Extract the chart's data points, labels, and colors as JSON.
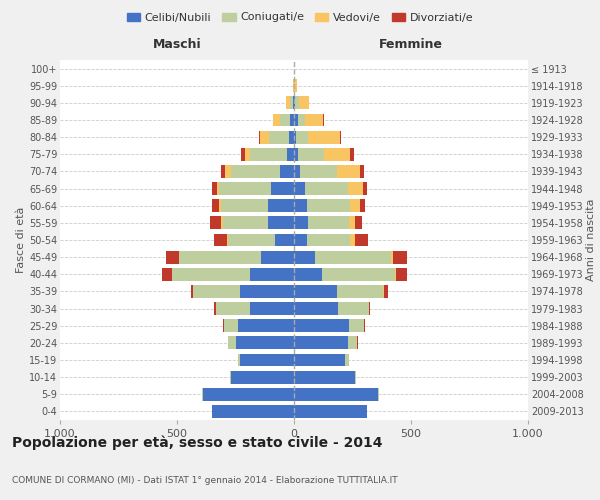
{
  "age_groups": [
    "0-4",
    "5-9",
    "10-14",
    "15-19",
    "20-24",
    "25-29",
    "30-34",
    "35-39",
    "40-44",
    "45-49",
    "50-54",
    "55-59",
    "60-64",
    "65-69",
    "70-74",
    "75-79",
    "80-84",
    "85-89",
    "90-94",
    "95-99",
    "100+"
  ],
  "birth_years": [
    "2009-2013",
    "2004-2008",
    "1999-2003",
    "1994-1998",
    "1989-1993",
    "1984-1988",
    "1979-1983",
    "1974-1978",
    "1969-1973",
    "1964-1968",
    "1959-1963",
    "1954-1958",
    "1949-1953",
    "1944-1948",
    "1939-1943",
    "1934-1938",
    "1929-1933",
    "1924-1928",
    "1919-1923",
    "1914-1918",
    "≤ 1913"
  ],
  "colors": {
    "celibe": "#4472C4",
    "coniugato": "#BFCE9F",
    "vedovo": "#F9C462",
    "divorziato": "#C0392B"
  },
  "maschi": {
    "celibe": [
      350,
      390,
      270,
      230,
      250,
      240,
      190,
      230,
      190,
      140,
      80,
      110,
      110,
      100,
      60,
      30,
      20,
      15,
      5,
      2,
      2
    ],
    "coniugato": [
      0,
      5,
      5,
      10,
      30,
      60,
      145,
      200,
      330,
      350,
      200,
      195,
      200,
      220,
      210,
      160,
      85,
      45,
      10,
      0,
      0
    ],
    "vedovo": [
      0,
      0,
      0,
      0,
      0,
      0,
      0,
      0,
      0,
      0,
      5,
      5,
      10,
      10,
      25,
      20,
      40,
      30,
      20,
      2,
      0
    ],
    "divorziato": [
      0,
      0,
      0,
      0,
      0,
      5,
      5,
      10,
      45,
      55,
      55,
      50,
      30,
      20,
      15,
      15,
      5,
      0,
      0,
      0,
      0
    ]
  },
  "femmine": {
    "nubile": [
      310,
      360,
      260,
      220,
      230,
      235,
      190,
      185,
      120,
      90,
      55,
      60,
      55,
      45,
      25,
      15,
      10,
      15,
      5,
      2,
      2
    ],
    "coniugata": [
      0,
      5,
      5,
      15,
      40,
      65,
      130,
      195,
      310,
      325,
      185,
      175,
      185,
      185,
      160,
      115,
      50,
      30,
      15,
      0,
      0
    ],
    "vedova": [
      0,
      0,
      0,
      0,
      0,
      0,
      0,
      5,
      5,
      10,
      20,
      25,
      40,
      65,
      95,
      110,
      135,
      80,
      45,
      10,
      0
    ],
    "divorziata": [
      0,
      0,
      0,
      0,
      5,
      5,
      5,
      15,
      50,
      60,
      55,
      30,
      25,
      15,
      20,
      15,
      5,
      5,
      0,
      0,
      0
    ]
  },
  "xlim": 1000,
  "title": "Popolazione per età, sesso e stato civile - 2014",
  "subtitle": "COMUNE DI CORMANO (MI) - Dati ISTAT 1° gennaio 2014 - Elaborazione TUTTITALIA.IT",
  "ylabel_left": "Fasce di età",
  "ylabel_right": "Anni di nascita",
  "xlabel_left": "Maschi",
  "xlabel_right": "Femmine",
  "legend_labels": [
    "Celibi/Nubili",
    "Coniugati/e",
    "Vedovi/e",
    "Divorziati/e"
  ],
  "bg_color": "#f0f0f0",
  "plot_bg": "#ffffff"
}
